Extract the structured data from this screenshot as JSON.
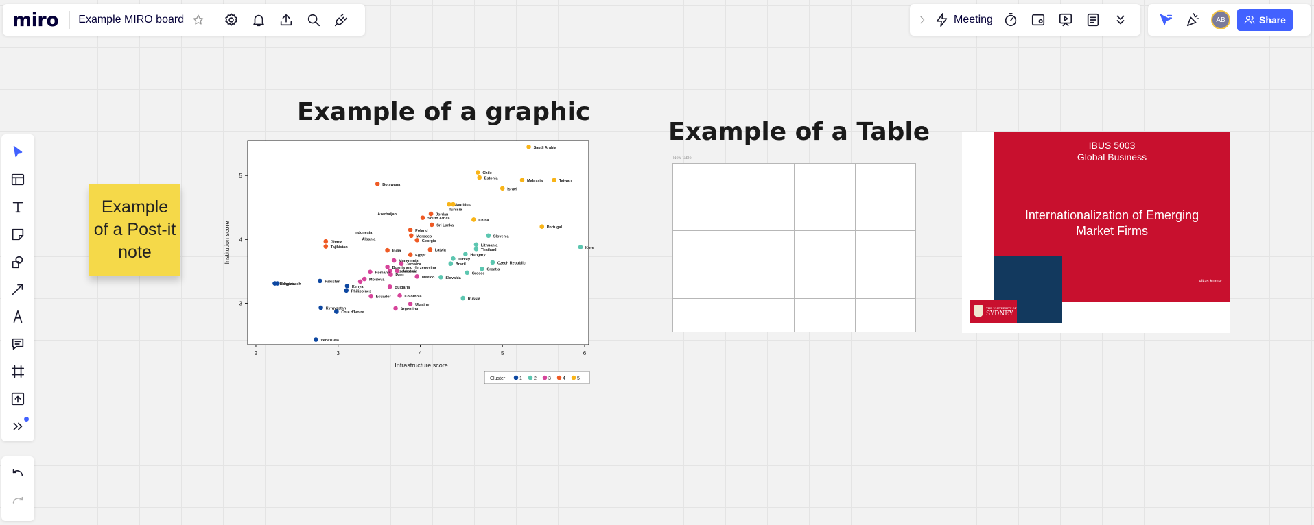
{
  "topbar": {
    "logo": "miro",
    "board_title": "Example MIRO board",
    "meeting_label": "Meeting",
    "share_label": "Share",
    "avatar_initials": "AB"
  },
  "sticky_note": {
    "text": "Example of a Post-it note",
    "color": "#f5d949"
  },
  "headings": {
    "graphic": "Example of a graphic",
    "table": "Example of a Table"
  },
  "table": {
    "label": "New table",
    "rows": 5,
    "cols": 4
  },
  "slide": {
    "course_line1": "IBUS 5003",
    "course_line2": "Global Business",
    "title_line1": "Internationalization of Emerging",
    "title_line2": "Market Firms",
    "author": "Vikas Kumar",
    "logo_line1": "THE UNIVERSITY OF",
    "logo_line2": "SYDNEY",
    "red": "#c8102e",
    "navy": "#12395e"
  },
  "chart_data": {
    "type": "scatter",
    "xlabel": "Infrastructure score",
    "ylabel": "Institution score",
    "xlim": [
      1.9,
      6.05
    ],
    "ylim": [
      2.35,
      5.55
    ],
    "xticks": [
      2,
      3,
      4,
      5,
      6
    ],
    "yticks": [
      3,
      4,
      5
    ],
    "legend": {
      "title": "Cluster",
      "entries": [
        "1",
        "2",
        "3",
        "4",
        "5"
      ],
      "position": "bottom-right"
    },
    "cluster_colors": {
      "1": "#0d47a1",
      "2": "#5cc6b0",
      "3": "#d6449a",
      "4": "#ef5a24",
      "5": "#f8b418"
    },
    "points": [
      {
        "label": "Saudi Arabia",
        "x": 5.32,
        "y": 5.45,
        "cluster": 5
      },
      {
        "label": "Chile",
        "x": 4.7,
        "y": 5.05,
        "cluster": 5
      },
      {
        "label": "Estonia",
        "x": 4.72,
        "y": 4.97,
        "cluster": 5
      },
      {
        "label": "Malaysia",
        "x": 5.24,
        "y": 4.93,
        "cluster": 5
      },
      {
        "label": "Taiwan",
        "x": 5.63,
        "y": 4.93,
        "cluster": 5
      },
      {
        "label": "Israel",
        "x": 5.0,
        "y": 4.8,
        "cluster": 5
      },
      {
        "label": "Mauritius",
        "x": 4.35,
        "y": 4.55,
        "cluster": 5
      },
      {
        "label": "",
        "x": 4.4,
        "y": 4.55,
        "cluster": 5
      },
      {
        "label": "China",
        "x": 4.65,
        "y": 4.31,
        "cluster": 5
      },
      {
        "label": "Portugal",
        "x": 5.48,
        "y": 4.2,
        "cluster": 5
      },
      {
        "label": "Botswana",
        "x": 3.48,
        "y": 4.87,
        "cluster": 4
      },
      {
        "label": "Jordan",
        "x": 4.13,
        "y": 4.4,
        "cluster": 4
      },
      {
        "label": "South Africa",
        "x": 4.03,
        "y": 4.34,
        "cluster": 4
      },
      {
        "label": "Sri Lanka",
        "x": 4.14,
        "y": 4.23,
        "cluster": 4
      },
      {
        "label": "Poland",
        "x": 3.88,
        "y": 4.15,
        "cluster": 4
      },
      {
        "label": "Morocco",
        "x": 3.89,
        "y": 4.06,
        "cluster": 4
      },
      {
        "label": "Georgia",
        "x": 3.96,
        "y": 3.99,
        "cluster": 4
      },
      {
        "label": "Ghana",
        "x": 2.85,
        "y": 3.97,
        "cluster": 4
      },
      {
        "label": "Tajikistan",
        "x": 2.85,
        "y": 3.89,
        "cluster": 4
      },
      {
        "label": "India",
        "x": 3.6,
        "y": 3.83,
        "cluster": 4
      },
      {
        "label": "Latvia",
        "x": 4.12,
        "y": 3.84,
        "cluster": 4
      },
      {
        "label": "Egypt",
        "x": 3.88,
        "y": 3.76,
        "cluster": 4
      },
      {
        "label": "Slovenia",
        "x": 4.83,
        "y": 4.06,
        "cluster": 2
      },
      {
        "label": "Lithuania",
        "x": 4.68,
        "y": 3.92,
        "cluster": 2
      },
      {
        "label": "Thailand",
        "x": 4.68,
        "y": 3.85,
        "cluster": 2
      },
      {
        "label": "Korea",
        "x": 5.95,
        "y": 3.88,
        "cluster": 2
      },
      {
        "label": "Hungary",
        "x": 4.55,
        "y": 3.77,
        "cluster": 2
      },
      {
        "label": "Turkey",
        "x": 4.4,
        "y": 3.7,
        "cluster": 2
      },
      {
        "label": "Brazil",
        "x": 4.37,
        "y": 3.62,
        "cluster": 2
      },
      {
        "label": "Czech Republic",
        "x": 4.88,
        "y": 3.64,
        "cluster": 2
      },
      {
        "label": "Croatia",
        "x": 4.75,
        "y": 3.54,
        "cluster": 2
      },
      {
        "label": "Greece",
        "x": 4.57,
        "y": 3.48,
        "cluster": 2
      },
      {
        "label": "Slovakia",
        "x": 4.25,
        "y": 3.41,
        "cluster": 2
      },
      {
        "label": "Russia",
        "x": 4.52,
        "y": 3.08,
        "cluster": 2
      },
      {
        "label": "Macedonia",
        "x": 3.68,
        "y": 3.67,
        "cluster": 3
      },
      {
        "label": "Jamaica",
        "x": 3.77,
        "y": 3.62,
        "cluster": 3
      },
      {
        "label": "Bosnia and Herzegovina",
        "x": 3.6,
        "y": 3.57,
        "cluster": 3
      },
      {
        "label": "Kazakhstan",
        "x": 3.63,
        "y": 3.51,
        "cluster": 3
      },
      {
        "label": "Armenia",
        "x": 3.72,
        "y": 3.51,
        "cluster": 3
      },
      {
        "label": "Romania",
        "x": 3.39,
        "y": 3.49,
        "cluster": 3
      },
      {
        "label": "Peru",
        "x": 3.64,
        "y": 3.45,
        "cluster": 3
      },
      {
        "label": "Mexico",
        "x": 3.96,
        "y": 3.42,
        "cluster": 3
      },
      {
        "label": "Moldova",
        "x": 3.32,
        "y": 3.38,
        "cluster": 3
      },
      {
        "label": "",
        "x": 3.27,
        "y": 3.34,
        "cluster": 3
      },
      {
        "label": "Bulgaria",
        "x": 3.63,
        "y": 3.26,
        "cluster": 3
      },
      {
        "label": "Ecuador",
        "x": 3.4,
        "y": 3.11,
        "cluster": 3
      },
      {
        "label": "Colombia",
        "x": 3.75,
        "y": 3.12,
        "cluster": 3
      },
      {
        "label": "Ukraine",
        "x": 3.88,
        "y": 2.99,
        "cluster": 3
      },
      {
        "label": "Argentina",
        "x": 3.7,
        "y": 2.92,
        "cluster": 3
      },
      {
        "label": "Bangladesh",
        "x": 2.23,
        "y": 3.31,
        "cluster": 1
      },
      {
        "label": "Nigeria",
        "x": 2.26,
        "y": 3.31,
        "cluster": 1
      },
      {
        "label": "Pakistan",
        "x": 2.78,
        "y": 3.35,
        "cluster": 1
      },
      {
        "label": "Kenya",
        "x": 3.11,
        "y": 3.27,
        "cluster": 1
      },
      {
        "label": "Philippines",
        "x": 3.1,
        "y": 3.2,
        "cluster": 1
      },
      {
        "label": "Kyrgyzstan",
        "x": 2.79,
        "y": 2.93,
        "cluster": 1
      },
      {
        "label": "Cote d'Ivoire",
        "x": 2.98,
        "y": 2.87,
        "cluster": 1
      },
      {
        "label": "Venezuela",
        "x": 2.73,
        "y": 2.43,
        "cluster": 1
      },
      {
        "label": "Azerbaijan",
        "x": "",
        "y": "",
        "cluster": 0
      },
      {
        "label": "Indonesia",
        "x": "",
        "y": "",
        "cluster": 0
      },
      {
        "label": "Albania",
        "x": "",
        "y": "",
        "cluster": 0
      },
      {
        "label": "Tunisia",
        "x": "",
        "y": "",
        "cluster": 0
      }
    ],
    "label_only": [
      {
        "label": "Azerbaijan",
        "x": 3.48,
        "y": 4.38
      },
      {
        "label": "Indonesia",
        "x": 3.2,
        "y": 4.09
      },
      {
        "label": "Albania",
        "x": 3.29,
        "y": 3.99
      },
      {
        "label": "Tunisia",
        "x": 4.35,
        "y": 4.45
      }
    ]
  }
}
